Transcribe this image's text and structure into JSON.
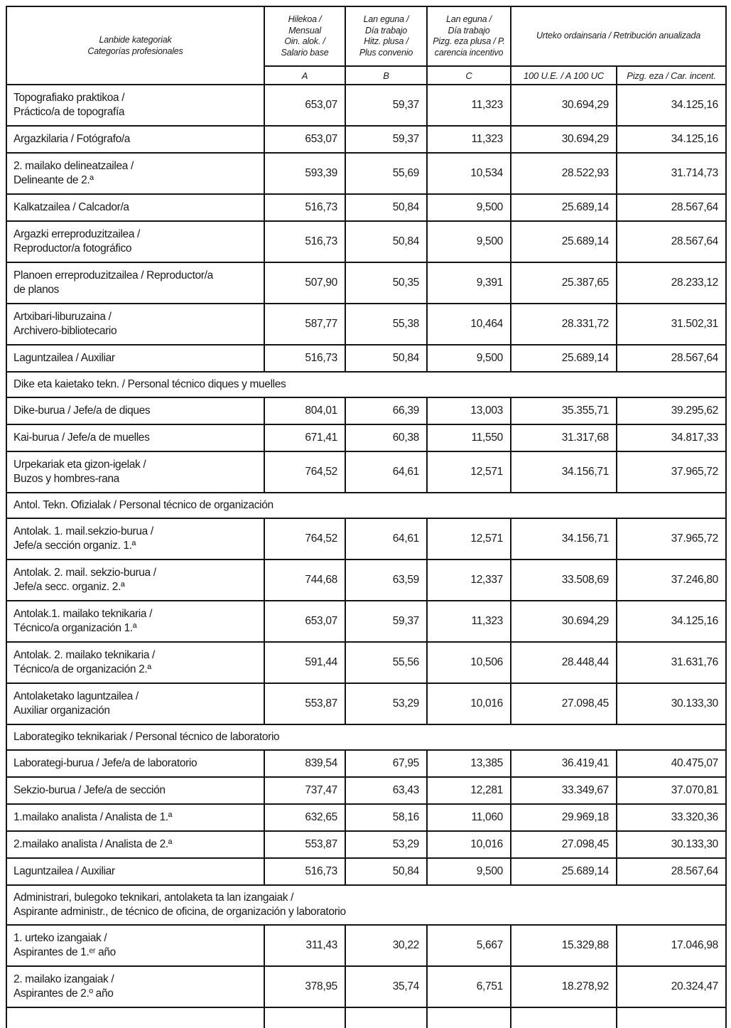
{
  "table": {
    "header": {
      "category": "Lanbide kategoriak\nCategorías profesionales",
      "monthly": "Hilekoa /\nMensual\nOin. alok. /\nSalario base",
      "day_convenio": "Lan eguna /\nDía trabajo\nHitz. plusa /\nPlus convenio",
      "day_carencia": "Lan eguna /\nDía trabajo\nPizg. eza plusa / P.\ncarencia incentivo",
      "annual_group": "Urteko ordainsaria / Retribución anualizada",
      "sub": [
        "A",
        "B",
        "C",
        "100 U.E. / A 100 UC",
        "Pizg. eza / Car. incent."
      ]
    },
    "rows": [
      {
        "type": "data",
        "label": "Topografiako praktikoa /\nPráctico/a de topografía",
        "values": [
          "653,07",
          "59,37",
          "11,323",
          "30.694,29",
          "34.125,16"
        ]
      },
      {
        "type": "data",
        "label": "Argazkilaria / Fotógrafo/a",
        "values": [
          "653,07",
          "59,37",
          "11,323",
          "30.694,29",
          "34.125,16"
        ]
      },
      {
        "type": "data",
        "label": "2. mailako delineatzailea /\nDelineante de 2.ª",
        "values": [
          "593,39",
          "55,69",
          "10,534",
          "28.522,93",
          "31.714,73"
        ]
      },
      {
        "type": "data",
        "label": "Kalkatzailea / Calcador/a",
        "values": [
          "516,73",
          "50,84",
          "9,500",
          "25.689,14",
          "28.567,64"
        ]
      },
      {
        "type": "data",
        "label": "Argazki erreproduzitzailea /\nReproductor/a fotográfico",
        "values": [
          "516,73",
          "50,84",
          "9,500",
          "25.689,14",
          "28.567,64"
        ]
      },
      {
        "type": "data",
        "label": "Planoen erreproduzitzailea / Reproductor/a\nde planos",
        "values": [
          "507,90",
          "50,35",
          "9,391",
          "25.387,65",
          "28.233,12"
        ]
      },
      {
        "type": "data",
        "label": "Artxibari-liburuzaina /\nArchivero-bibliotecario",
        "values": [
          "587,77",
          "55,38",
          "10,464",
          "28.331,72",
          "31.502,31"
        ]
      },
      {
        "type": "data",
        "label": "Laguntzailea / Auxiliar",
        "values": [
          "516,73",
          "50,84",
          "9,500",
          "25.689,14",
          "28.567,64"
        ]
      },
      {
        "type": "section",
        "label": "Dike eta kaietako tekn. / Personal técnico diques y muelles"
      },
      {
        "type": "data",
        "label": "Dike-burua / Jefe/a de diques",
        "values": [
          "804,01",
          "66,39",
          "13,003",
          "35.355,71",
          "39.295,62"
        ]
      },
      {
        "type": "data",
        "label": "Kai-burua / Jefe/a de muelles",
        "values": [
          "671,41",
          "60,38",
          "11,550",
          "31.317,68",
          "34.817,33"
        ]
      },
      {
        "type": "data",
        "label": "Urpekariak eta gizon-igelak /\nBuzos y hombres-rana",
        "values": [
          "764,52",
          "64,61",
          "12,571",
          "34.156,71",
          "37.965,72"
        ]
      },
      {
        "type": "section",
        "label": "Antol. Tekn. Ofizialak / Personal técnico de organización"
      },
      {
        "type": "data",
        "label": "Antolak. 1. mail.sekzio-burua /\nJefe/a sección organiz. 1.ª",
        "values": [
          "764,52",
          "64,61",
          "12,571",
          "34.156,71",
          "37.965,72"
        ]
      },
      {
        "type": "data",
        "label": "Antolak. 2. mail. sekzio-burua /\nJefe/a secc. organiz. 2.ª",
        "values": [
          "744,68",
          "63,59",
          "12,337",
          "33.508,69",
          "37.246,80"
        ]
      },
      {
        "type": "data",
        "label": "Antolak.1. mailako teknikaria /\nTécnico/a organización 1.ª",
        "values": [
          "653,07",
          "59,37",
          "11,323",
          "30.694,29",
          "34.125,16"
        ]
      },
      {
        "type": "data",
        "label": "Antolak. 2. mailako teknikaria /\nTécnico/a de organización 2.ª",
        "values": [
          "591,44",
          "55,56",
          "10,506",
          "28.448,44",
          "31.631,76"
        ]
      },
      {
        "type": "data",
        "label": "Antolaketako laguntzailea /\nAuxiliar organización",
        "values": [
          "553,87",
          "53,29",
          "10,016",
          "27.098,45",
          "30.133,30"
        ]
      },
      {
        "type": "section",
        "label": "Laborategiko teknikariak / Personal técnico de laboratorio"
      },
      {
        "type": "data",
        "label": "Laborategi-burua / Jefe/a de laboratorio",
        "values": [
          "839,54",
          "67,95",
          "13,385",
          "36.419,41",
          "40.475,07"
        ]
      },
      {
        "type": "data",
        "label": "Sekzio-burua / Jefe/a de sección",
        "values": [
          "737,47",
          "63,43",
          "12,281",
          "33.349,67",
          "37.070,81"
        ]
      },
      {
        "type": "data",
        "label": "1.mailako analista / Analista de 1.ª",
        "values": [
          "632,65",
          "58,16",
          "11,060",
          "29.969,18",
          "33.320,36"
        ]
      },
      {
        "type": "data",
        "label": "2.mailako analista / Analista de 2.ª",
        "values": [
          "553,87",
          "53,29",
          "10,016",
          "27.098,45",
          "30.133,30"
        ]
      },
      {
        "type": "data",
        "label": "Laguntzailea / Auxiliar",
        "values": [
          "516,73",
          "50,84",
          "9,500",
          "25.689,14",
          "28.567,64"
        ]
      },
      {
        "type": "section",
        "label": "Administrari, bulegoko teknikari, antolaketa ta lan izangaiak /\nAspirante administr., de técnico de oficina, de organización y laboratorio"
      },
      {
        "type": "data",
        "label": "1. urteko izangaiak /\nAspirantes de 1.ᵉʳ año",
        "values": [
          "311,43",
          "30,22",
          "5,667",
          "15.329,88",
          "17.046,98"
        ]
      },
      {
        "type": "data",
        "label": "2. mailako izangaiak /\nAspirantes de 2.º año",
        "values": [
          "378,95",
          "35,74",
          "6,751",
          "18.278,92",
          "20.324,47"
        ]
      }
    ]
  }
}
